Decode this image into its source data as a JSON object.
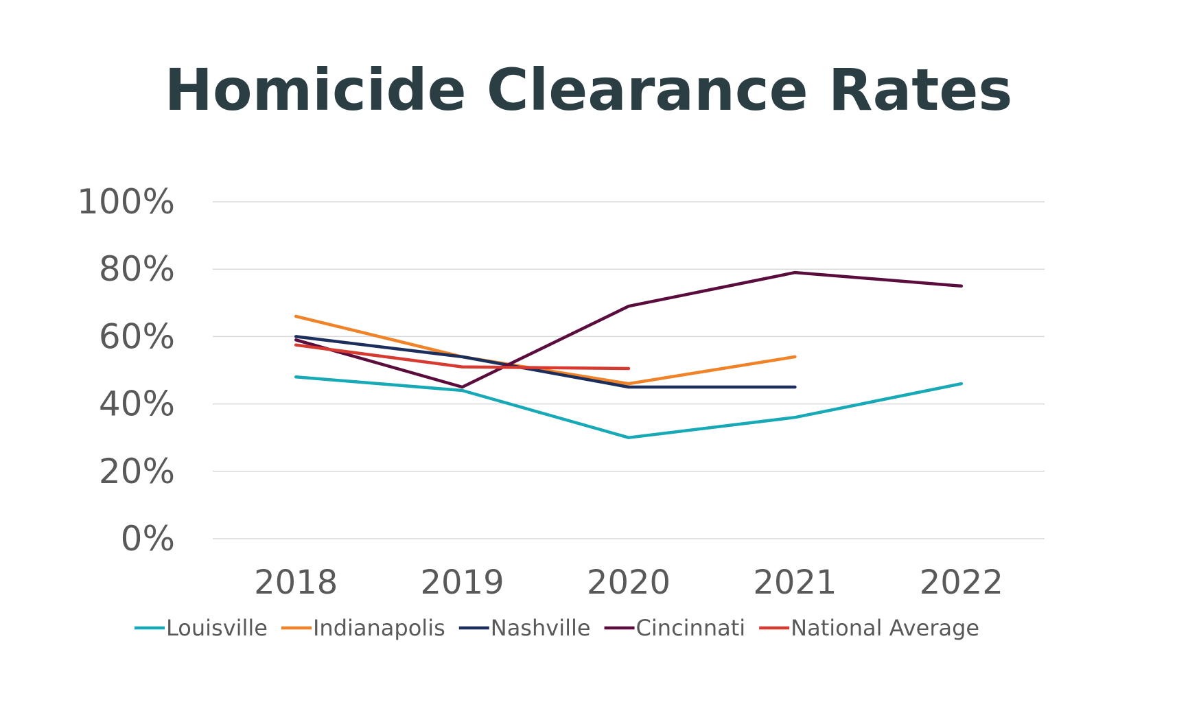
{
  "chart_data": {
    "type": "line",
    "title": "Homicide Clearance Rates",
    "xlabel": "",
    "ylabel": "",
    "categories": [
      "2018",
      "2019",
      "2020",
      "2021",
      "2022"
    ],
    "ylim": [
      0,
      100
    ],
    "yticks": [
      "0%",
      "20%",
      "40%",
      "60%",
      "80%",
      "100%"
    ],
    "grid": true,
    "legend_position": "bottom",
    "series": [
      {
        "name": "Louisville",
        "color": "#17a9b6",
        "values": [
          48,
          44,
          30,
          36,
          46
        ]
      },
      {
        "name": "Indianapolis",
        "color": "#f08228",
        "values": [
          66,
          54,
          46,
          54,
          null
        ]
      },
      {
        "name": "Nashville",
        "color": "#1c2e5b",
        "values": [
          60,
          54,
          45,
          45,
          null
        ]
      },
      {
        "name": "Cincinnati",
        "color": "#5a0c3c",
        "values": [
          59,
          45,
          69,
          79,
          75
        ]
      },
      {
        "name": "National Average",
        "color": "#d63a30",
        "values": [
          57.5,
          51,
          50.5,
          null,
          null
        ]
      }
    ]
  }
}
